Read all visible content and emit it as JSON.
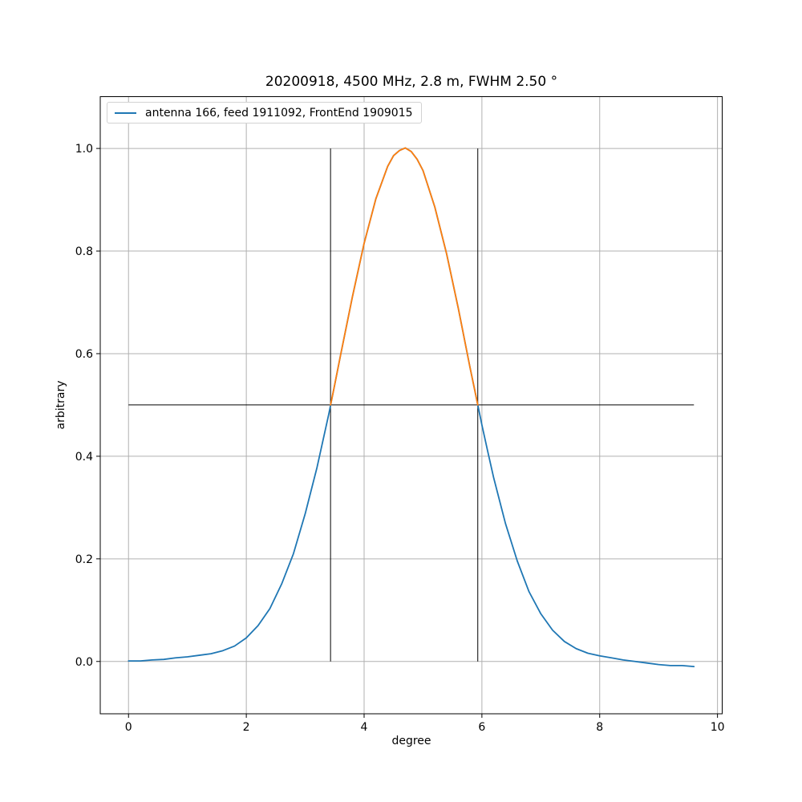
{
  "chart_data": {
    "type": "line",
    "title": "20200918, 4500 MHz, 2.8 m, FWHM 2.50 °",
    "xlabel": "degree",
    "ylabel": "arbitrary",
    "legend": [
      "antenna 166, feed 1911092, FrontEnd 1909015"
    ],
    "legend_position": "upper left",
    "grid": true,
    "xlim": [
      -0.48,
      10.08
    ],
    "ylim": [
      -0.102,
      1.101
    ],
    "xtick_values": [
      0,
      2,
      4,
      6,
      8,
      10
    ],
    "xtick_labels": [
      "0",
      "2",
      "4",
      "6",
      "8",
      "10"
    ],
    "ytick_values": [
      0.0,
      0.2,
      0.4,
      0.6,
      0.8,
      1.0
    ],
    "ytick_labels": [
      "0.0",
      "0.2",
      "0.4",
      "0.6",
      "0.8",
      "1.0"
    ],
    "colors": {
      "main": "#1f77b4",
      "highlight": "#ff7f0e",
      "grid": "#b0b0b0",
      "marker_lines": "#000000"
    },
    "fwhm_deg": 2.5,
    "peak_center_deg": 4.68,
    "peak_value": 1.0,
    "half_power_level": 0.5,
    "hline": {
      "y": 0.5,
      "x_start": 0.0,
      "x_end": 9.6
    },
    "vlines": [
      3.43,
      5.93
    ],
    "vline_y_range": [
      0.0,
      1.0
    ],
    "highlight_range": [
      3.43,
      5.93
    ],
    "series": [
      {
        "name": "antenna 166, feed 1911092, FrontEnd 1909015",
        "color": "#1f77b4",
        "x": [
          0.0,
          0.2,
          0.4,
          0.6,
          0.8,
          1.0,
          1.2,
          1.4,
          1.6,
          1.8,
          2.0,
          2.2,
          2.4,
          2.6,
          2.8,
          3.0,
          3.2,
          3.3,
          3.4,
          3.5,
          3.6,
          3.8,
          4.0,
          4.2,
          4.4,
          4.5,
          4.6,
          4.7,
          4.8,
          4.9,
          5.0,
          5.2,
          5.4,
          5.6,
          5.8,
          5.9,
          6.0,
          6.1,
          6.2,
          6.4,
          6.6,
          6.8,
          7.0,
          7.2,
          7.4,
          7.6,
          7.8,
          8.0,
          8.2,
          8.4,
          8.6,
          8.8,
          9.0,
          9.2,
          9.4,
          9.6
        ],
        "y": [
          0.001,
          0.001,
          0.003,
          0.004,
          0.007,
          0.009,
          0.012,
          0.015,
          0.021,
          0.03,
          0.046,
          0.07,
          0.103,
          0.151,
          0.21,
          0.288,
          0.378,
          0.43,
          0.482,
          0.539,
          0.597,
          0.71,
          0.815,
          0.902,
          0.965,
          0.986,
          0.996,
          1.001,
          0.994,
          0.979,
          0.957,
          0.886,
          0.795,
          0.688,
          0.572,
          0.517,
          0.461,
          0.409,
          0.358,
          0.269,
          0.196,
          0.136,
          0.093,
          0.061,
          0.039,
          0.025,
          0.016,
          0.011,
          0.007,
          0.003,
          0.0,
          -0.003,
          -0.006,
          -0.008,
          -0.008,
          -0.01
        ]
      }
    ]
  }
}
